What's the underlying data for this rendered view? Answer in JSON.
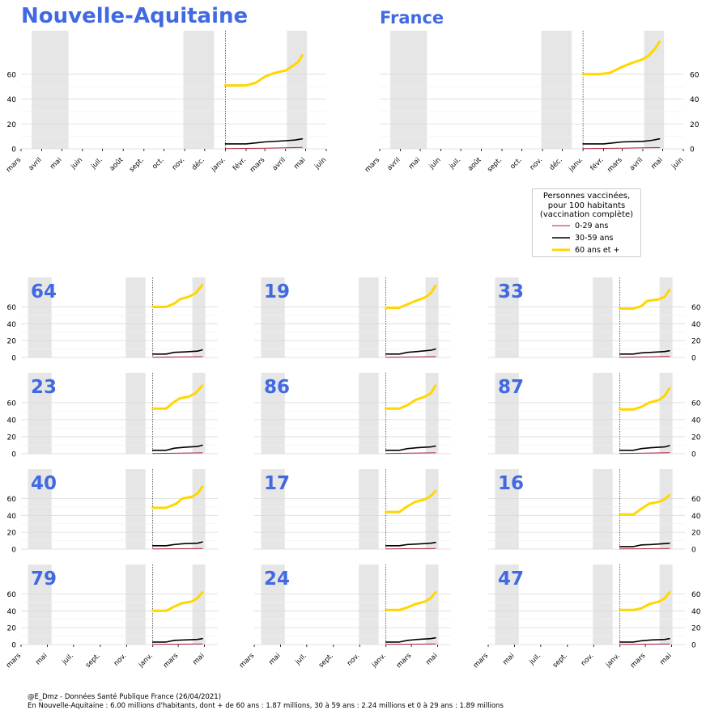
{
  "title_main": "Nouvelle-Aquitaine",
  "title_france": "France",
  "legend": {
    "title_line1": "Personnes vaccinées,",
    "title_line2": "pour 100 habitants",
    "title_line3": "(vaccination complète)",
    "items": [
      {
        "label": "0-29 ans",
        "color": "#b0233a",
        "width": 1
      },
      {
        "label": "30-59 ans",
        "color": "#000000",
        "width": 1.4
      },
      {
        "label": "60 ans et +",
        "color": "#ffd700",
        "width": 3
      }
    ]
  },
  "footer_line1": "@E_Dmz - Données Santé Publique France (26/04/2021)",
  "footer_line2": "En Nouvelle-Aquitaine : 6.00 millions d'habitants, dont + de 60 ans : 1.87 millions, 30 à 59 ans : 2.24 millions et 0 à 29 ans : 1.89 millions",
  "colors": {
    "title": "#4169e1",
    "age_0_29": "#b0233a",
    "age_30_59": "#000000",
    "age_60plus": "#ffd700",
    "shade": "#e6e6e6"
  },
  "chart_data": [
    {
      "type": "line",
      "name": "Nouvelle-Aquitaine",
      "title": "Nouvelle-Aquitaine",
      "x_ticks": [
        "mars",
        "avril",
        "mai",
        "juin",
        "juil.",
        "août",
        "sept.",
        "oct.",
        "nov.",
        "déc.",
        "janv.",
        "févr.",
        "mars",
        "avril",
        "mai",
        "juin"
      ],
      "yticks": [
        0,
        20,
        40,
        60
      ],
      "ylim": [
        0,
        95
      ],
      "grid": true,
      "shaded_periods": [
        [
          "2020-03-17",
          "2020-05-11"
        ],
        [
          "2020-10-30",
          "2020-12-15"
        ],
        [
          "2021-04-03",
          "2021-05-03"
        ]
      ],
      "vline": "2021-01-01",
      "series": [
        {
          "name": "0-29 ans",
          "x": [
            "2021-01-01",
            "2021-02-01",
            "2021-03-01",
            "2021-04-01",
            "2021-04-26"
          ],
          "y": [
            0.2,
            0.3,
            0.5,
            0.8,
            1.2
          ]
        },
        {
          "name": "30-59 ans",
          "x": [
            "2021-01-01",
            "2021-02-01",
            "2021-02-20",
            "2021-03-01",
            "2021-04-01",
            "2021-04-15",
            "2021-04-26"
          ],
          "y": [
            4,
            4,
            5,
            5.5,
            6.5,
            7,
            8
          ]
        },
        {
          "name": "60 ans et +",
          "x": [
            "2021-01-01",
            "2021-02-01",
            "2021-02-15",
            "2021-03-01",
            "2021-03-15",
            "2021-04-01",
            "2021-04-10",
            "2021-04-20",
            "2021-04-26"
          ],
          "y": [
            51,
            51,
            53,
            58,
            61,
            63,
            66,
            70,
            75
          ]
        }
      ]
    },
    {
      "type": "line",
      "name": "France",
      "title": "France",
      "x_ticks": [
        "mars",
        "avril",
        "mai",
        "juin",
        "juil.",
        "août",
        "sept.",
        "oct.",
        "nov.",
        "déc.",
        "janv.",
        "févr.",
        "mars",
        "avril",
        "mai",
        "juin"
      ],
      "yticks": [
        0,
        20,
        40,
        60
      ],
      "ylim": [
        0,
        95
      ],
      "grid": true,
      "shaded_periods": [
        [
          "2020-03-17",
          "2020-05-11"
        ],
        [
          "2020-10-30",
          "2020-12-15"
        ],
        [
          "2021-04-03",
          "2021-05-03"
        ]
      ],
      "vline": "2021-01-01",
      "series": [
        {
          "name": "0-29 ans",
          "x": [
            "2021-01-01",
            "2021-02-01",
            "2021-03-01",
            "2021-04-01",
            "2021-04-26"
          ],
          "y": [
            0.2,
            0.3,
            0.5,
            0.8,
            1.0
          ]
        },
        {
          "name": "30-59 ans",
          "x": [
            "2021-01-01",
            "2021-02-01",
            "2021-02-20",
            "2021-03-01",
            "2021-04-01",
            "2021-04-15",
            "2021-04-26"
          ],
          "y": [
            4,
            4,
            5,
            5.5,
            6,
            6.8,
            8
          ]
        },
        {
          "name": "60 ans et +",
          "x": [
            "2021-01-01",
            "2021-01-25",
            "2021-02-10",
            "2021-03-01",
            "2021-03-15",
            "2021-04-01",
            "2021-04-10",
            "2021-04-20",
            "2021-04-26"
          ],
          "y": [
            60,
            60,
            61,
            66,
            69,
            72,
            75,
            81,
            86
          ]
        }
      ]
    },
    {
      "type": "line",
      "name": "64",
      "title": "64",
      "x_ticks": [],
      "yticks": [
        0,
        20,
        40,
        60
      ],
      "ylim": [
        0,
        95
      ],
      "series": [
        {
          "name": "0-29 ans",
          "x": [
            "2021-01-01",
            "2021-04-26"
          ],
          "y": [
            0.3,
            1.0
          ]
        },
        {
          "name": "30-59 ans",
          "x": [
            "2021-01-01",
            "2021-02-01",
            "2021-02-20",
            "2021-03-15",
            "2021-04-15",
            "2021-04-26"
          ],
          "y": [
            4,
            4,
            6,
            6.5,
            7.5,
            9
          ]
        },
        {
          "name": "60 ans et +",
          "x": [
            "2021-01-01",
            "2021-02-01",
            "2021-02-20",
            "2021-03-05",
            "2021-03-25",
            "2021-04-10",
            "2021-04-26"
          ],
          "y": [
            60,
            60,
            64,
            69,
            72,
            76,
            86
          ]
        }
      ]
    },
    {
      "type": "line",
      "name": "19",
      "title": "19",
      "x_ticks": [],
      "yticks": [
        0,
        20,
        40,
        60
      ],
      "ylim": [
        0,
        95
      ],
      "series": [
        {
          "name": "0-29 ans",
          "x": [
            "2021-01-01",
            "2021-04-26"
          ],
          "y": [
            0.3,
            1.0
          ]
        },
        {
          "name": "30-59 ans",
          "x": [
            "2021-01-01",
            "2021-02-01",
            "2021-02-20",
            "2021-03-15",
            "2021-04-15",
            "2021-04-26"
          ],
          "y": [
            4,
            4,
            6,
            7,
            8.5,
            10
          ]
        },
        {
          "name": "60 ans et +",
          "x": [
            "2021-01-01",
            "2021-02-01",
            "2021-02-20",
            "2021-03-10",
            "2021-04-01",
            "2021-04-15",
            "2021-04-26"
          ],
          "y": [
            59,
            59,
            63,
            67,
            71,
            76,
            85
          ]
        }
      ]
    },
    {
      "type": "line",
      "name": "33",
      "title": "33",
      "x_ticks": [],
      "yticks": [
        0,
        20,
        40,
        60
      ],
      "ylim": [
        0,
        95
      ],
      "series": [
        {
          "name": "0-29 ans",
          "x": [
            "2021-01-01",
            "2021-04-26"
          ],
          "y": [
            0.3,
            1.2
          ]
        },
        {
          "name": "30-59 ans",
          "x": [
            "2021-01-01",
            "2021-02-01",
            "2021-02-20",
            "2021-03-15",
            "2021-04-15",
            "2021-04-26"
          ],
          "y": [
            4,
            4,
            5.5,
            6,
            7,
            8
          ]
        },
        {
          "name": "60 ans et +",
          "x": [
            "2021-01-01",
            "2021-02-01",
            "2021-02-20",
            "2021-03-05",
            "2021-04-01",
            "2021-04-15",
            "2021-04-26"
          ],
          "y": [
            58,
            58,
            61,
            67,
            69,
            72,
            80
          ]
        }
      ]
    },
    {
      "type": "line",
      "name": "23",
      "title": "23",
      "x_ticks": [],
      "yticks": [
        0,
        20,
        40,
        60
      ],
      "ylim": [
        0,
        95
      ],
      "series": [
        {
          "name": "0-29 ans",
          "x": [
            "2021-01-01",
            "2021-04-26"
          ],
          "y": [
            0.3,
            1.0
          ]
        },
        {
          "name": "30-59 ans",
          "x": [
            "2021-01-01",
            "2021-02-01",
            "2021-02-20",
            "2021-03-15",
            "2021-04-15",
            "2021-04-26"
          ],
          "y": [
            4,
            4,
            6.5,
            7.5,
            8.5,
            10
          ]
        },
        {
          "name": "60 ans et +",
          "x": [
            "2021-01-01",
            "2021-02-01",
            "2021-02-20",
            "2021-03-05",
            "2021-03-25",
            "2021-04-10",
            "2021-04-26"
          ],
          "y": [
            53,
            53,
            61,
            65,
            67,
            71,
            80
          ]
        }
      ]
    },
    {
      "type": "line",
      "name": "86",
      "title": "86",
      "x_ticks": [],
      "yticks": [
        0,
        20,
        40,
        60
      ],
      "ylim": [
        0,
        95
      ],
      "series": [
        {
          "name": "0-29 ans",
          "x": [
            "2021-01-01",
            "2021-04-26"
          ],
          "y": [
            0.3,
            1.0
          ]
        },
        {
          "name": "30-59 ans",
          "x": [
            "2021-01-01",
            "2021-02-01",
            "2021-02-20",
            "2021-03-15",
            "2021-04-15",
            "2021-04-26"
          ],
          "y": [
            4,
            4,
            6,
            7,
            8,
            9
          ]
        },
        {
          "name": "60 ans et +",
          "x": [
            "2021-01-01",
            "2021-02-01",
            "2021-02-20",
            "2021-03-10",
            "2021-04-01",
            "2021-04-15",
            "2021-04-26"
          ],
          "y": [
            53,
            53,
            57,
            63,
            67,
            71,
            80
          ]
        }
      ]
    },
    {
      "type": "line",
      "name": "87",
      "title": "87",
      "x_ticks": [],
      "yticks": [
        0,
        20,
        40,
        60
      ],
      "ylim": [
        0,
        95
      ],
      "series": [
        {
          "name": "0-29 ans",
          "x": [
            "2021-01-01",
            "2021-04-26"
          ],
          "y": [
            0.3,
            1.2
          ]
        },
        {
          "name": "30-59 ans",
          "x": [
            "2021-01-01",
            "2021-02-01",
            "2021-02-20",
            "2021-03-15",
            "2021-04-15",
            "2021-04-26"
          ],
          "y": [
            4,
            4,
            6,
            7,
            8,
            9.5
          ]
        },
        {
          "name": "60 ans et +",
          "x": [
            "2021-01-01",
            "2021-02-01",
            "2021-02-20",
            "2021-03-10",
            "2021-04-01",
            "2021-04-15",
            "2021-04-26"
          ],
          "y": [
            52,
            52,
            55,
            60,
            63,
            68,
            77
          ]
        }
      ]
    },
    {
      "type": "line",
      "name": "40",
      "title": "40",
      "x_ticks": [],
      "yticks": [
        0,
        20,
        40,
        60
      ],
      "ylim": [
        0,
        95
      ],
      "series": [
        {
          "name": "0-29 ans",
          "x": [
            "2021-01-01",
            "2021-04-26"
          ],
          "y": [
            0.3,
            0.8
          ]
        },
        {
          "name": "30-59 ans",
          "x": [
            "2021-01-01",
            "2021-02-01",
            "2021-02-20",
            "2021-03-15",
            "2021-04-15",
            "2021-04-26"
          ],
          "y": [
            4,
            4,
            5.5,
            6.5,
            7,
            8.5
          ]
        },
        {
          "name": "60 ans et +",
          "x": [
            "2021-01-01",
            "2021-02-01",
            "2021-02-25",
            "2021-03-10",
            "2021-04-01",
            "2021-04-15",
            "2021-04-26"
          ],
          "y": [
            49,
            49,
            54,
            60,
            62,
            66,
            74
          ]
        }
      ]
    },
    {
      "type": "line",
      "name": "17",
      "title": "17",
      "x_ticks": [],
      "yticks": [
        0,
        20,
        40,
        60
      ],
      "ylim": [
        0,
        95
      ],
      "series": [
        {
          "name": "0-29 ans",
          "x": [
            "2021-01-01",
            "2021-04-26"
          ],
          "y": [
            0.3,
            0.8
          ]
        },
        {
          "name": "30-59 ans",
          "x": [
            "2021-01-01",
            "2021-02-01",
            "2021-02-20",
            "2021-03-15",
            "2021-04-15",
            "2021-04-26"
          ],
          "y": [
            4,
            4,
            5.5,
            6,
            7,
            8
          ]
        },
        {
          "name": "60 ans et +",
          "x": [
            "2021-01-01",
            "2021-02-01",
            "2021-02-20",
            "2021-03-10",
            "2021-04-01",
            "2021-04-15",
            "2021-04-26"
          ],
          "y": [
            44,
            44,
            51,
            56,
            59,
            63,
            69
          ]
        }
      ]
    },
    {
      "type": "line",
      "name": "16",
      "title": "16",
      "x_ticks": [],
      "yticks": [
        0,
        20,
        40,
        60
      ],
      "ylim": [
        0,
        95
      ],
      "series": [
        {
          "name": "0-29 ans",
          "x": [
            "2021-01-01",
            "2021-04-26"
          ],
          "y": [
            0.3,
            0.8
          ]
        },
        {
          "name": "30-59 ans",
          "x": [
            "2021-01-01",
            "2021-02-01",
            "2021-02-20",
            "2021-03-15",
            "2021-04-15",
            "2021-04-26"
          ],
          "y": [
            3,
            3,
            5,
            5.5,
            6.5,
            7
          ]
        },
        {
          "name": "60 ans et +",
          "x": [
            "2021-01-01",
            "2021-02-01",
            "2021-02-20",
            "2021-03-10",
            "2021-04-01",
            "2021-04-15",
            "2021-04-26"
          ],
          "y": [
            41,
            41,
            48,
            54,
            56,
            59,
            64
          ]
        }
      ]
    },
    {
      "type": "line",
      "name": "79",
      "title": "79",
      "x_ticks": [
        "mars",
        "mai",
        "juil.",
        "sept.",
        "nov.",
        "janv.",
        "mars",
        "mai"
      ],
      "yticks": [
        0,
        20,
        40,
        60
      ],
      "ylim": [
        0,
        95
      ],
      "series": [
        {
          "name": "0-29 ans",
          "x": [
            "2021-01-01",
            "2021-04-26"
          ],
          "y": [
            0.2,
            0.8
          ]
        },
        {
          "name": "30-59 ans",
          "x": [
            "2021-01-01",
            "2021-02-01",
            "2021-02-20",
            "2021-03-15",
            "2021-04-15",
            "2021-04-26"
          ],
          "y": [
            3,
            3,
            5,
            5.5,
            6,
            7
          ]
        },
        {
          "name": "60 ans et +",
          "x": [
            "2021-01-01",
            "2021-02-01",
            "2021-02-20",
            "2021-03-10",
            "2021-04-01",
            "2021-04-15",
            "2021-04-26"
          ],
          "y": [
            40,
            40,
            45,
            49,
            51,
            55,
            62
          ]
        }
      ]
    },
    {
      "type": "line",
      "name": "24",
      "title": "24",
      "x_ticks": [
        "mars",
        "mai",
        "juil.",
        "sept.",
        "nov.",
        "janv.",
        "mars",
        "mai"
      ],
      "yticks": [
        0,
        20,
        40,
        60
      ],
      "ylim": [
        0,
        95
      ],
      "series": [
        {
          "name": "0-29 ans",
          "x": [
            "2021-01-01",
            "2021-04-26"
          ],
          "y": [
            0.2,
            0.8
          ]
        },
        {
          "name": "30-59 ans",
          "x": [
            "2021-01-01",
            "2021-02-01",
            "2021-02-20",
            "2021-03-15",
            "2021-04-15",
            "2021-04-26"
          ],
          "y": [
            3,
            3,
            5,
            6,
            7,
            8
          ]
        },
        {
          "name": "60 ans et +",
          "x": [
            "2021-01-01",
            "2021-02-01",
            "2021-02-20",
            "2021-03-10",
            "2021-04-01",
            "2021-04-15",
            "2021-04-26"
          ],
          "y": [
            41,
            41,
            44,
            48,
            51,
            55,
            62
          ]
        }
      ]
    },
    {
      "type": "line",
      "name": "47",
      "title": "47",
      "x_ticks": [
        "mars",
        "mai",
        "juil.",
        "sept.",
        "nov.",
        "janv.",
        "mars",
        "mai"
      ],
      "yticks": [
        0,
        20,
        40,
        60
      ],
      "ylim": [
        0,
        95
      ],
      "series": [
        {
          "name": "0-29 ans",
          "x": [
            "2021-01-01",
            "2021-04-26"
          ],
          "y": [
            0.2,
            0.8
          ]
        },
        {
          "name": "30-59 ans",
          "x": [
            "2021-01-01",
            "2021-02-01",
            "2021-02-20",
            "2021-03-15",
            "2021-04-15",
            "2021-04-26"
          ],
          "y": [
            3,
            3,
            4.5,
            5.5,
            6,
            7
          ]
        },
        {
          "name": "60 ans et +",
          "x": [
            "2021-01-01",
            "2021-02-01",
            "2021-02-20",
            "2021-03-10",
            "2021-04-01",
            "2021-04-15",
            "2021-04-26"
          ],
          "y": [
            41,
            41,
            43,
            48,
            51,
            55,
            62
          ]
        }
      ]
    }
  ]
}
